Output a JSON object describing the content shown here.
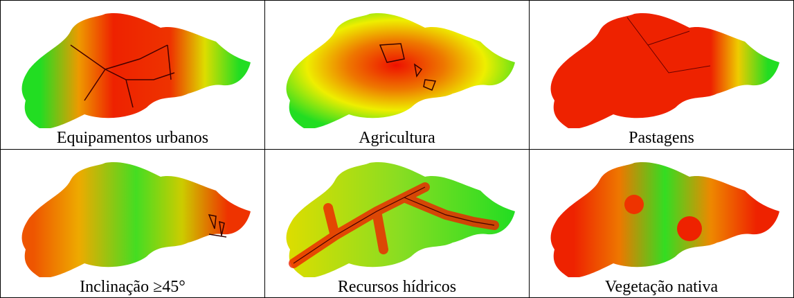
{
  "panels": [
    {
      "caption": "Equipamentos urbanos"
    },
    {
      "caption": "Agricultura"
    },
    {
      "caption": "Pastagens"
    },
    {
      "caption": "Inclinação ≥45°"
    },
    {
      "caption": "Recursos hídricos"
    },
    {
      "caption": "Vegetação nativa"
    }
  ]
}
